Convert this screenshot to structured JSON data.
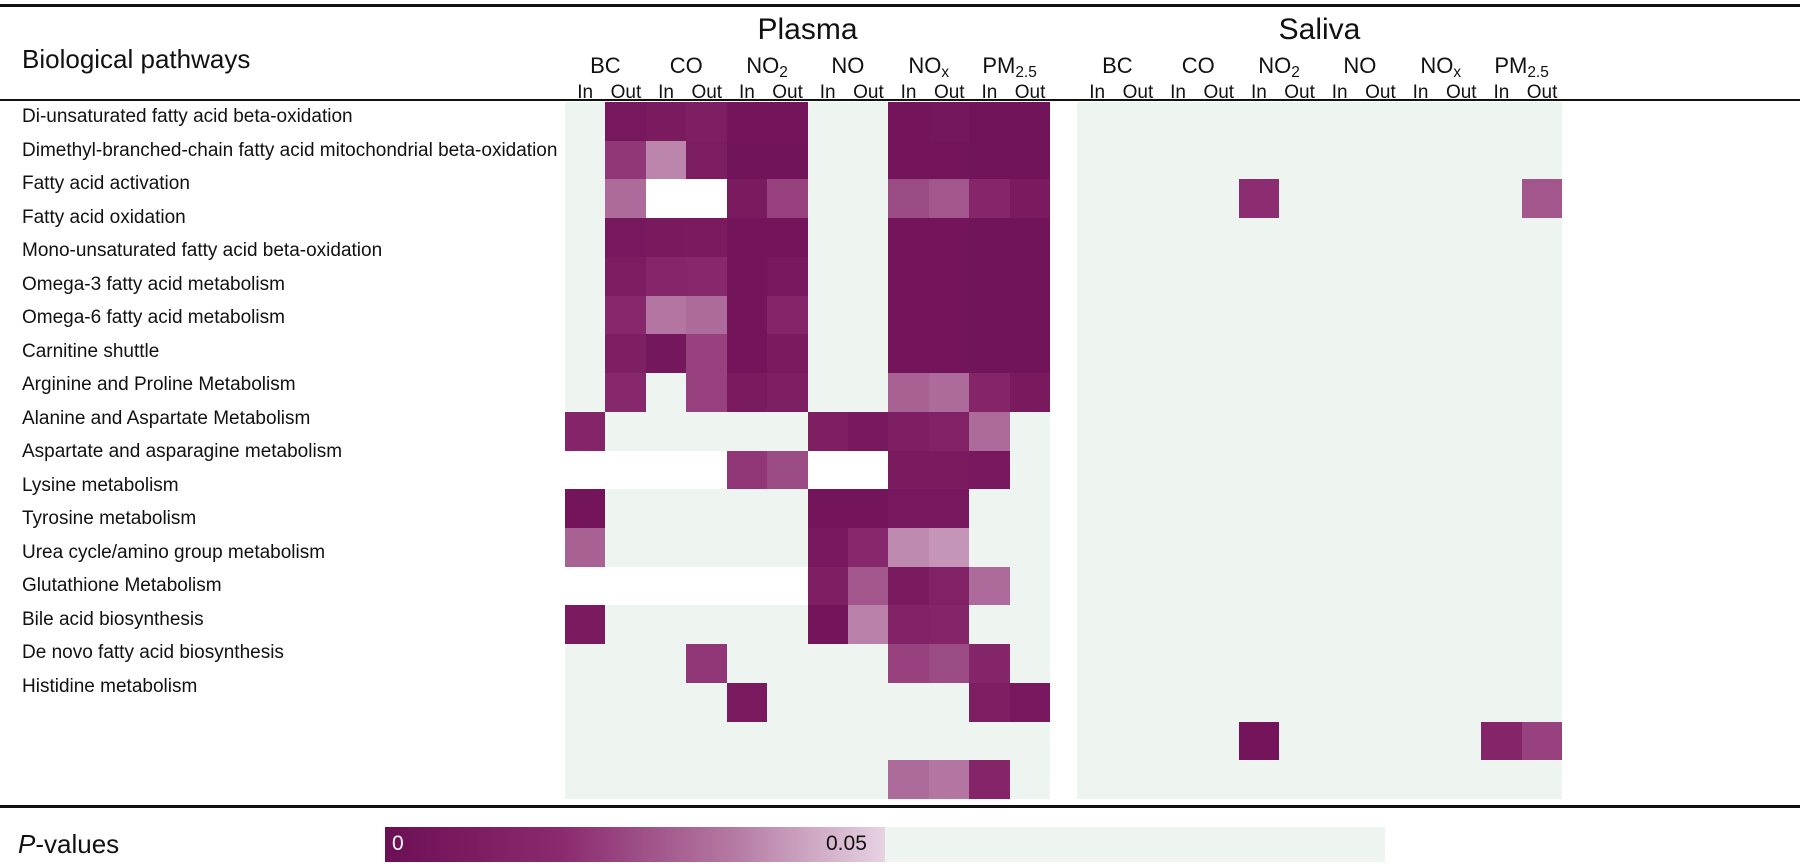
{
  "chart_data": {
    "type": "heatmap",
    "ylabel": "Biological pathways",
    "groups": [
      {
        "name": "Plasma",
        "pollutants": [
          "BC",
          "CO",
          "NO2",
          "NO",
          "NOx",
          "PM2.5"
        ]
      },
      {
        "name": "Saliva",
        "pollutants": [
          "BC",
          "CO",
          "NO2",
          "NO",
          "NOx",
          "PM2.5"
        ]
      }
    ],
    "pollutant_display": [
      {
        "base": "BC",
        "sub": ""
      },
      {
        "base": "CO",
        "sub": ""
      },
      {
        "base": "NO",
        "sub": "2"
      },
      {
        "base": "NO",
        "sub": ""
      },
      {
        "base": "NO",
        "sub": "x"
      },
      {
        "base": "PM",
        "sub": "2.5"
      }
    ],
    "exposure_labels": [
      "In",
      "Out"
    ],
    "rows": [
      "Di-unsaturated fatty acid beta-oxidation",
      "Dimethyl-branched-chain fatty acid mitochondrial beta-oxidation",
      "Fatty acid activation",
      "Fatty acid oxidation",
      "Mono-unsaturated fatty acid beta-oxidation",
      "Omega-3 fatty acid metabolism",
      "Omega-6 fatty acid metabolism",
      "Carnitine shuttle",
      "Arginine and Proline Metabolism",
      "Alanine and Aspartate Metabolism",
      "Aspartate and asparagine metabolism",
      "Lysine metabolism",
      "Tyrosine metabolism",
      "Urea cycle/amino group metabolism",
      "Glutathione Metabolism",
      "Bile acid biosynthesis",
      "De novo fatty acid biosynthesis",
      "Histidine metabolism"
    ],
    "plasma_values": [
      [
        null,
        0.006,
        0.008,
        0.01,
        0.004,
        0.004,
        null,
        null,
        0.004,
        0.005,
        0.003,
        0.003
      ],
      [
        null,
        0.02,
        0.035,
        0.009,
        0.003,
        0.003,
        null,
        null,
        0.004,
        0.004,
        0.003,
        0.003
      ],
      [
        null,
        0.03,
        "blank",
        "blank",
        0.008,
        0.022,
        null,
        null,
        0.024,
        0.026,
        0.015,
        0.008
      ],
      [
        null,
        0.006,
        0.007,
        0.008,
        0.004,
        0.004,
        null,
        null,
        0.004,
        0.004,
        0.003,
        0.003
      ],
      [
        null,
        0.009,
        0.015,
        0.016,
        0.004,
        0.006,
        null,
        null,
        0.004,
        0.004,
        0.003,
        0.003
      ],
      [
        null,
        0.016,
        0.032,
        0.03,
        0.004,
        0.014,
        null,
        null,
        0.004,
        0.004,
        0.003,
        0.003
      ],
      [
        null,
        0.01,
        0.005,
        0.022,
        0.004,
        0.008,
        null,
        null,
        0.004,
        0.004,
        0.003,
        0.003
      ],
      [
        null,
        0.016,
        null,
        0.022,
        0.008,
        0.01,
        null,
        null,
        0.028,
        0.03,
        0.014,
        0.007
      ],
      [
        0.014,
        null,
        null,
        null,
        null,
        null,
        0.01,
        0.006,
        0.01,
        0.012,
        0.03,
        null
      ],
      [
        "blank",
        "blank",
        "blank",
        "blank",
        0.02,
        0.024,
        "blank",
        "blank",
        0.008,
        0.008,
        0.006,
        null
      ],
      [
        0.004,
        null,
        null,
        null,
        null,
        null,
        0.004,
        0.004,
        0.006,
        0.006,
        null,
        null
      ],
      [
        0.028,
        null,
        null,
        null,
        null,
        null,
        0.006,
        0.016,
        0.036,
        0.038,
        null,
        null
      ],
      [
        "blank",
        "blank",
        "blank",
        "blank",
        "blank",
        "blank",
        0.01,
        0.026,
        0.008,
        0.012,
        0.03,
        null
      ],
      [
        0.008,
        null,
        null,
        null,
        null,
        null,
        0.004,
        0.034,
        0.012,
        0.014,
        null,
        null
      ],
      [
        null,
        null,
        null,
        0.02,
        null,
        null,
        null,
        null,
        0.022,
        0.024,
        0.014,
        null
      ],
      [
        null,
        null,
        null,
        null,
        0.008,
        null,
        null,
        null,
        null,
        null,
        0.01,
        0.006
      ],
      [
        null,
        null,
        null,
        null,
        null,
        null,
        null,
        null,
        null,
        null,
        null,
        null
      ],
      [
        null,
        null,
        null,
        null,
        null,
        null,
        null,
        null,
        0.03,
        0.032,
        0.014,
        null
      ]
    ],
    "saliva_values": [
      [
        null,
        null,
        null,
        null,
        null,
        null,
        null,
        null,
        null,
        null,
        null,
        null
      ],
      [
        null,
        null,
        null,
        null,
        null,
        null,
        null,
        null,
        null,
        null,
        null,
        null
      ],
      [
        null,
        null,
        null,
        null,
        0.018,
        null,
        null,
        null,
        null,
        null,
        null,
        0.026
      ],
      [
        null,
        null,
        null,
        null,
        null,
        null,
        null,
        null,
        null,
        null,
        null,
        null
      ],
      [
        null,
        null,
        null,
        null,
        null,
        null,
        null,
        null,
        null,
        null,
        null,
        null
      ],
      [
        null,
        null,
        null,
        null,
        null,
        null,
        null,
        null,
        null,
        null,
        null,
        null
      ],
      [
        null,
        null,
        null,
        null,
        null,
        null,
        null,
        null,
        null,
        null,
        null,
        null
      ],
      [
        null,
        null,
        null,
        null,
        null,
        null,
        null,
        null,
        null,
        null,
        null,
        null
      ],
      [
        null,
        null,
        null,
        null,
        null,
        null,
        null,
        null,
        null,
        null,
        null,
        null
      ],
      [
        null,
        null,
        null,
        null,
        null,
        null,
        null,
        null,
        null,
        null,
        null,
        null
      ],
      [
        null,
        null,
        null,
        null,
        null,
        null,
        null,
        null,
        null,
        null,
        null,
        null
      ],
      [
        null,
        null,
        null,
        null,
        null,
        null,
        null,
        null,
        null,
        null,
        null,
        null
      ],
      [
        null,
        null,
        null,
        null,
        null,
        null,
        null,
        null,
        null,
        null,
        null,
        null
      ],
      [
        null,
        null,
        null,
        null,
        null,
        null,
        null,
        null,
        null,
        null,
        null,
        null
      ],
      [
        null,
        null,
        null,
        null,
        null,
        null,
        null,
        null,
        null,
        null,
        null,
        null
      ],
      [
        null,
        null,
        null,
        null,
        null,
        null,
        null,
        null,
        null,
        null,
        null,
        null
      ],
      [
        null,
        null,
        null,
        null,
        0.004,
        null,
        null,
        null,
        null,
        null,
        0.014,
        0.022
      ],
      [
        null,
        null,
        null,
        null,
        null,
        null,
        null,
        null,
        null,
        null,
        null,
        null
      ]
    ],
    "colorbar": {
      "label": "P-values",
      "label_italic": "P",
      "label_rest": "-values",
      "ticks": [
        "0",
        "0.05"
      ],
      "range": [
        0,
        0.05
      ]
    },
    "colors": {
      "low": "#6d0f55",
      "mid": "#8a2a6e",
      "high": "#e6d3e2",
      "not_significant": "#eef5f1",
      "blank": "#ffffff"
    }
  }
}
